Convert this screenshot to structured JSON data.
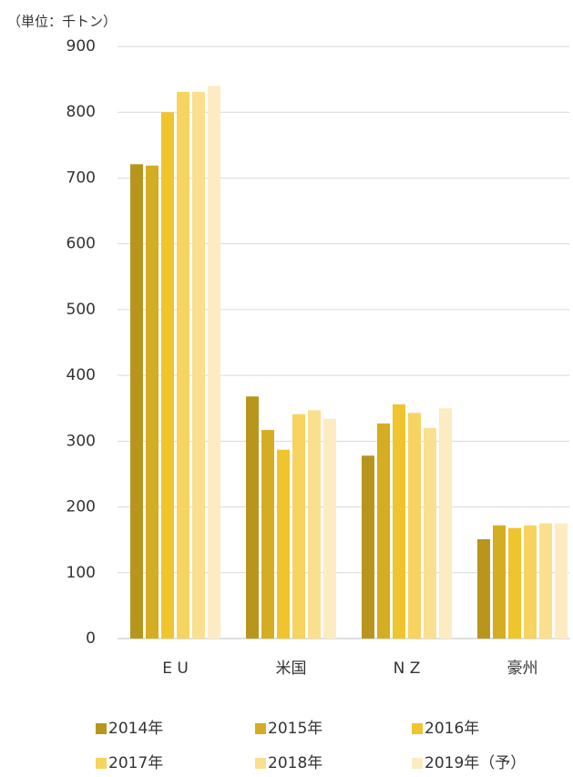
{
  "chart_data": {
    "type": "bar",
    "unit_label": "（単位：千トン）",
    "categories": [
      "E U",
      "米国",
      "N Z",
      "豪州"
    ],
    "series": [
      {
        "name": "2014年",
        "color": "#b8961e",
        "values": [
          721,
          368,
          278,
          151
        ]
      },
      {
        "name": "2015年",
        "color": "#d4ad22",
        "values": [
          719,
          317,
          327,
          172
        ]
      },
      {
        "name": "2016年",
        "color": "#f0c42c",
        "values": [
          800,
          287,
          356,
          168
        ]
      },
      {
        "name": "2017年",
        "color": "#f7d35f",
        "values": [
          831,
          341,
          343,
          172
        ]
      },
      {
        "name": "2018年",
        "color": "#fadf8e",
        "values": [
          831,
          347,
          320,
          175
        ]
      },
      {
        "name": "2019年（予）",
        "color": "#fdebc2",
        "values": [
          840,
          334,
          350,
          175
        ]
      }
    ],
    "ylim": [
      0,
      900
    ],
    "yticks": [
      0,
      100,
      200,
      300,
      400,
      500,
      600,
      700,
      800,
      900
    ],
    "grid": true
  }
}
